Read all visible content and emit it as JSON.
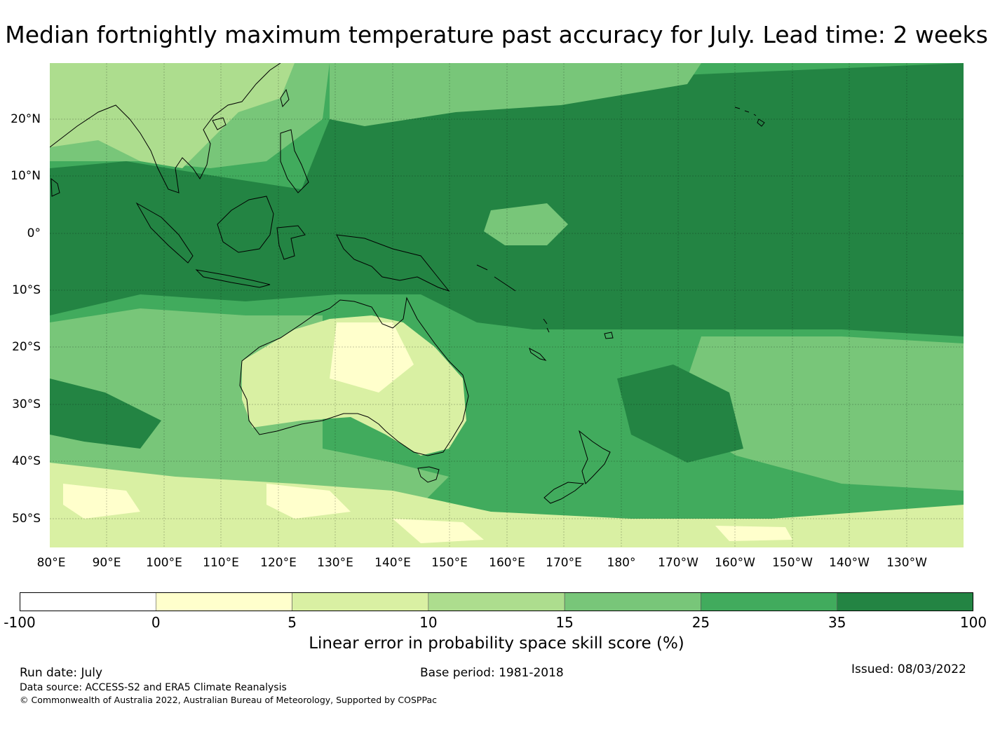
{
  "title": "Median fortnightly maximum temperature past accuracy for July. Lead time: 2 weeks",
  "map": {
    "lat_labels": [
      "20°N",
      "10°N",
      "0°",
      "10°S",
      "20°S",
      "30°S",
      "40°S",
      "50°S"
    ],
    "lon_labels": [
      "80°E",
      "90°E",
      "100°E",
      "110°E",
      "120°E",
      "130°E",
      "140°E",
      "150°E",
      "160°E",
      "170°E",
      "180°",
      "170°W",
      "160°W",
      "150°W",
      "140°W",
      "130°W"
    ]
  },
  "colorbar": {
    "ticks": [
      "-100",
      "0",
      "5",
      "10",
      "15",
      "25",
      "35",
      "100"
    ],
    "colors": [
      "#ffffff",
      "#ffffcc",
      "#d9f0a3",
      "#addd8e",
      "#78c679",
      "#41ab5d",
      "#238443"
    ],
    "label": "Linear error in probability space skill score (%)"
  },
  "footer": {
    "run_date": "Run date: July",
    "base_period": "Base period: 1981-2018",
    "issued": "Issued: 08/03/2022",
    "data_source": "Data source: ACCESS-S2 and ERA5 Climate Reanalysis",
    "copyright": "© Commonwealth of Australia 2022, Australian Bureau of Meteorology, Supported by COSPPac"
  }
}
